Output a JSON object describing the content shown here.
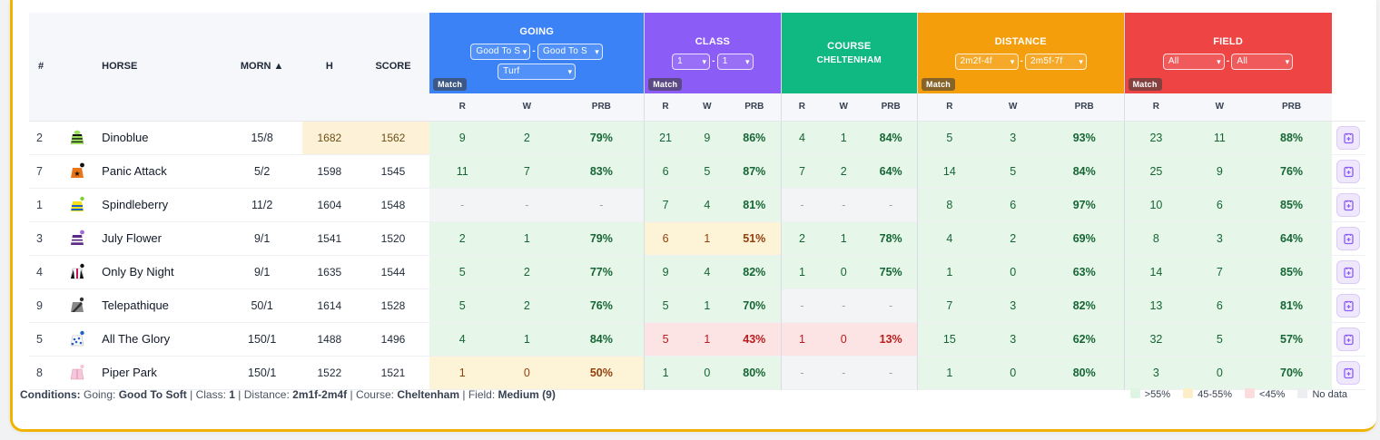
{
  "headers": {
    "num": "#",
    "horse": "HORSE",
    "morn": "MORN ▲",
    "h": "H",
    "score": "SCORE",
    "sub_r": "R",
    "sub_w": "W",
    "sub_prb": "PRB"
  },
  "groups": {
    "going": {
      "title": "GOING",
      "color": "#3b82f6",
      "sel1": "Good To S",
      "sel2": "Good To S",
      "sel3": "Turf",
      "match": "Match"
    },
    "class": {
      "title": "CLASS",
      "color": "#8b5cf6",
      "sel1": "1",
      "sel2": "1",
      "match": "Match"
    },
    "course": {
      "title": "COURSE",
      "subtitle": "CHELTENHAM",
      "color": "#10b981"
    },
    "distance": {
      "title": "DISTANCE",
      "color": "#f59e0b",
      "sel1": "2m2f-4f",
      "sel2": "2m5f-7f",
      "match": "Match"
    },
    "field": {
      "title": "FIELD",
      "color": "#ef4444",
      "sel1": "All",
      "sel2": "All",
      "match": "Match"
    }
  },
  "rows": [
    {
      "num": "2",
      "horse": "Dinoblue",
      "morn": "15/8",
      "h": "1682",
      "score": "1562",
      "hl": true,
      "silk": "silk-green-stripes",
      "going": [
        "9",
        "2",
        "79%",
        "g"
      ],
      "class": [
        "21",
        "9",
        "86%",
        "g"
      ],
      "course": [
        "4",
        "1",
        "84%",
        "g"
      ],
      "distance": [
        "5",
        "3",
        "93%",
        "g"
      ],
      "field": [
        "23",
        "11",
        "88%",
        "g"
      ]
    },
    {
      "num": "7",
      "horse": "Panic Attack",
      "morn": "5/2",
      "h": "1598",
      "score": "1545",
      "silk": "silk-orange-star",
      "going": [
        "11",
        "7",
        "83%",
        "g"
      ],
      "class": [
        "6",
        "5",
        "87%",
        "g"
      ],
      "course": [
        "7",
        "2",
        "64%",
        "g"
      ],
      "distance": [
        "14",
        "5",
        "84%",
        "g"
      ],
      "field": [
        "25",
        "9",
        "76%",
        "g"
      ]
    },
    {
      "num": "1",
      "horse": "Spindleberry",
      "morn": "11/2",
      "h": "1604",
      "score": "1548",
      "silk": "silk-yellow-hoops",
      "going": [
        "-",
        "-",
        "-",
        "n"
      ],
      "class": [
        "7",
        "4",
        "81%",
        "g"
      ],
      "course": [
        "-",
        "-",
        "-",
        "n"
      ],
      "distance": [
        "8",
        "6",
        "97%",
        "g"
      ],
      "field": [
        "10",
        "6",
        "85%",
        "g"
      ]
    },
    {
      "num": "3",
      "horse": "July Flower",
      "morn": "9/1",
      "h": "1541",
      "score": "1520",
      "silk": "silk-purple-white",
      "going": [
        "2",
        "1",
        "79%",
        "g"
      ],
      "class": [
        "6",
        "1",
        "51%",
        "y"
      ],
      "course": [
        "2",
        "1",
        "78%",
        "g"
      ],
      "distance": [
        "4",
        "2",
        "69%",
        "g"
      ],
      "field": [
        "8",
        "3",
        "64%",
        "g"
      ]
    },
    {
      "num": "4",
      "horse": "Only By Night",
      "morn": "9/1",
      "h": "1635",
      "score": "1544",
      "silk": "silk-black-white",
      "going": [
        "5",
        "2",
        "77%",
        "g"
      ],
      "class": [
        "9",
        "4",
        "82%",
        "g"
      ],
      "course": [
        "1",
        "0",
        "75%",
        "g"
      ],
      "distance": [
        "1",
        "0",
        "63%",
        "g"
      ],
      "field": [
        "14",
        "7",
        "85%",
        "g"
      ]
    },
    {
      "num": "9",
      "horse": "Telepathique",
      "morn": "50/1",
      "h": "1614",
      "score": "1528",
      "silk": "silk-grey",
      "going": [
        "5",
        "2",
        "76%",
        "g"
      ],
      "class": [
        "5",
        "1",
        "70%",
        "g"
      ],
      "course": [
        "-",
        "-",
        "-",
        "n"
      ],
      "distance": [
        "7",
        "3",
        "82%",
        "g"
      ],
      "field": [
        "13",
        "6",
        "81%",
        "g"
      ]
    },
    {
      "num": "5",
      "horse": "All The Glory",
      "morn": "150/1",
      "h": "1488",
      "score": "1496",
      "silk": "silk-blue-spots",
      "going": [
        "4",
        "1",
        "84%",
        "g"
      ],
      "class": [
        "5",
        "1",
        "43%",
        "r"
      ],
      "course": [
        "1",
        "0",
        "13%",
        "r"
      ],
      "distance": [
        "15",
        "3",
        "62%",
        "g"
      ],
      "field": [
        "32",
        "5",
        "57%",
        "g"
      ]
    },
    {
      "num": "8",
      "horse": "Piper Park",
      "morn": "150/1",
      "h": "1522",
      "score": "1521",
      "silk": "silk-pink",
      "going": [
        "1",
        "0",
        "50%",
        "y"
      ],
      "class": [
        "1",
        "0",
        "80%",
        "g"
      ],
      "course": [
        "-",
        "-",
        "-",
        "n"
      ],
      "distance": [
        "1",
        "0",
        "80%",
        "g"
      ],
      "field": [
        "3",
        "0",
        "70%",
        "g"
      ]
    }
  ],
  "footer": {
    "conditions_label": "Conditions:",
    "going_label": "Going:",
    "going_val": "Good To Soft",
    "class_label": "Class:",
    "class_val": "1",
    "distance_label": "Distance:",
    "distance_val": "2m1f-2m4f",
    "course_label": "Course:",
    "course_val": "Cheltenham",
    "field_label": "Field:",
    "field_val": "Medium (9)"
  },
  "legend": [
    {
      "label": ">55%",
      "color": "#dff5e3"
    },
    {
      "label": "45-55%",
      "color": "#fcefc7"
    },
    {
      "label": "<45%",
      "color": "#fcdcdc"
    },
    {
      "label": "No data",
      "color": "#eceef1"
    }
  ]
}
